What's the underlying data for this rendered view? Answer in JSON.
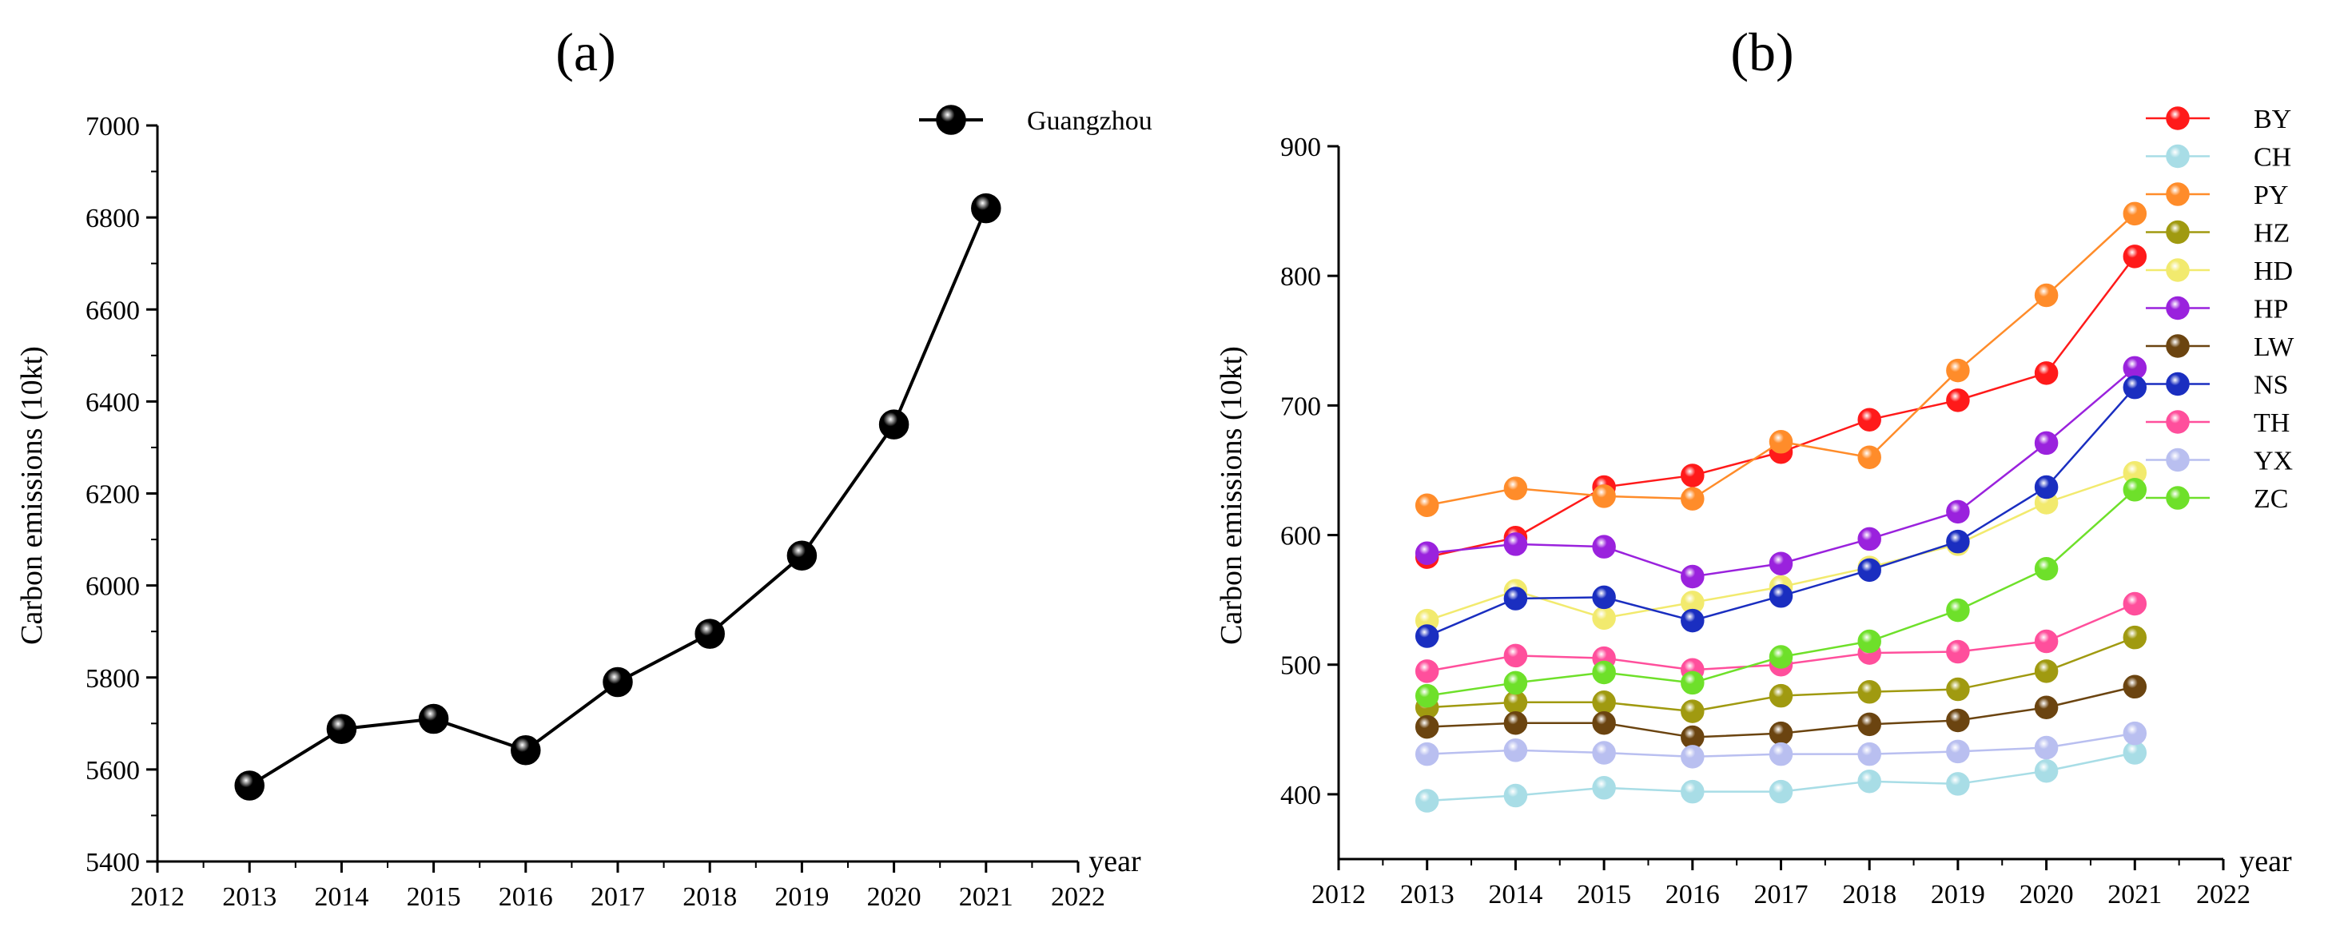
{
  "chart_data": [
    {
      "type": "line",
      "panel_label": "(a)",
      "title": "",
      "xlabel": "year",
      "ylabel": "Carbon emissions (10kt)",
      "xlim": [
        2012,
        2022
      ],
      "ylim": [
        5400,
        7000
      ],
      "x_ticks": [
        "2012",
        "2013",
        "2014",
        "2015",
        "2016",
        "2017",
        "2018",
        "2019",
        "2020",
        "2021",
        "2022"
      ],
      "y_ticks": [
        "5400",
        "5600",
        "5800",
        "6000",
        "6200",
        "6400",
        "6600",
        "6800",
        "7000"
      ],
      "legend_position": "top-right",
      "grid": false,
      "x": [
        2013,
        2014,
        2015,
        2016,
        2017,
        2018,
        2019,
        2020,
        2021
      ],
      "series": [
        {
          "name": "Guangzhou",
          "color": "#000000",
          "values": [
            5565,
            5688,
            5710,
            5642,
            5790,
            5895,
            6065,
            6350,
            6820
          ]
        }
      ]
    },
    {
      "type": "line",
      "panel_label": "(b)",
      "title": "",
      "xlabel": "year",
      "ylabel": "Carbon emissions (10kt)",
      "xlim": [
        2012,
        2022
      ],
      "ylim": [
        350,
        900
      ],
      "x_ticks": [
        "2012",
        "2013",
        "2014",
        "2015",
        "2016",
        "2017",
        "2018",
        "2019",
        "2020",
        "2021",
        "2022"
      ],
      "y_ticks": [
        "400",
        "500",
        "600",
        "700",
        "800",
        "900"
      ],
      "legend_position": "top-right",
      "grid": false,
      "x": [
        2013,
        2014,
        2015,
        2016,
        2017,
        2018,
        2019,
        2020,
        2021
      ],
      "series": [
        {
          "name": "BY",
          "color": "#ff1a1a",
          "values": [
            583,
            598,
            637,
            646,
            664,
            689,
            704,
            725,
            815
          ]
        },
        {
          "name": "CH",
          "color": "#a8dde6",
          "values": [
            395,
            399,
            405,
            402,
            402,
            410,
            408,
            418,
            432
          ]
        },
        {
          "name": "PY",
          "color": "#ff8c2a",
          "values": [
            623,
            636,
            630,
            628,
            672,
            660,
            727,
            785,
            848
          ]
        },
        {
          "name": "HZ",
          "color": "#a09a10",
          "values": [
            467,
            471,
            471,
            464,
            476,
            479,
            481,
            495,
            521
          ]
        },
        {
          "name": "HD",
          "color": "#f2ea6e",
          "values": [
            534,
            557,
            536,
            548,
            560,
            575,
            593,
            625,
            648
          ]
        },
        {
          "name": "HP",
          "color": "#9a22dd",
          "values": [
            586,
            593,
            591,
            568,
            578,
            597,
            618,
            671,
            729
          ]
        },
        {
          "name": "LW",
          "color": "#6b4410",
          "values": [
            452,
            455,
            455,
            444,
            447,
            454,
            457,
            467,
            483
          ]
        },
        {
          "name": "NS",
          "color": "#1a2ec0",
          "values": [
            522,
            551,
            552,
            534,
            553,
            573,
            595,
            637,
            714
          ]
        },
        {
          "name": "TH",
          "color": "#ff4f9c",
          "values": [
            495,
            507,
            505,
            496,
            500,
            509,
            510,
            518,
            547
          ]
        },
        {
          "name": "YX",
          "color": "#b9bff0",
          "values": [
            431,
            434,
            432,
            429,
            431,
            431,
            433,
            436,
            447
          ]
        },
        {
          "name": "ZC",
          "color": "#6ee02a",
          "values": [
            476,
            486,
            494,
            486,
            506,
            518,
            542,
            574,
            635
          ]
        }
      ]
    }
  ]
}
